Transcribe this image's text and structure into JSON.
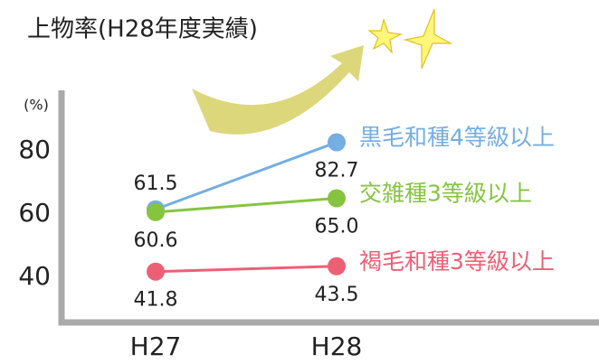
{
  "chart_data": {
    "type": "line",
    "title": "上物率(H28年度実績)",
    "y_unit": "(%)",
    "categories": [
      "H27",
      "H28"
    ],
    "series": [
      {
        "name": "黒毛和種4等級以上",
        "color": "#74aee2",
        "values": [
          61.5,
          82.7
        ]
      },
      {
        "name": "交雑種3等級以上",
        "color": "#86c440",
        "values": [
          60.6,
          65.0
        ],
        "value_labels": [
          "60.6",
          "65.0"
        ]
      },
      {
        "name": "褐毛和種3等級以上",
        "color": "#ec6076",
        "values": [
          41.8,
          43.5
        ]
      }
    ],
    "ylim": [
      26,
      99
    ],
    "yticks": [
      40,
      60,
      80
    ]
  }
}
